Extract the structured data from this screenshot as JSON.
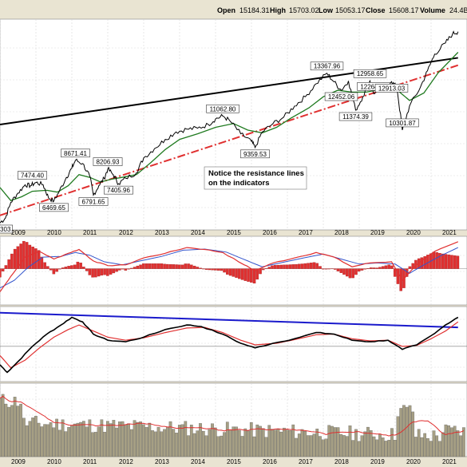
{
  "header": {
    "open_label": "Open",
    "open_value": "15184.31",
    "high_label": "High",
    "high_value": "15703.02",
    "low_label": "Low",
    "low_value": "15053.17",
    "close_label": "Close",
    "close_value": "15608.17",
    "volume_label": "Volume",
    "volume_value": "24.4B"
  },
  "note": {
    "line1": "Notice the resistance lines",
    "line2": "on the indicators"
  },
  "chart_data": {
    "type": "line",
    "x_range": [
      2009.0,
      2022.0
    ],
    "years": [
      "2009",
      "2010",
      "2011",
      "2012",
      "2013",
      "2014",
      "2015",
      "2016",
      "2017",
      "2018",
      "2019",
      "2020",
      "2021"
    ],
    "colors": {
      "price": "#000000",
      "ma": "#1f7a1f",
      "resistance": "#000000",
      "support": "#e03030",
      "macd": "#e03030",
      "macd_signal": "#3355cc",
      "hist": "#e03030",
      "osc_fast": "#000000",
      "osc_slow": "#e03030",
      "osc_trend": "#1a1acc",
      "volume": "#a69f84",
      "volume_ma": "#e03030"
    },
    "price_panel": {
      "annotations": [
        {
          "label": "7474.40",
          "x": 2009.9,
          "y": 7474.4
        },
        {
          "label": "6469.65",
          "x": 2010.5,
          "y": 6469.65
        },
        {
          "label": "8671.41",
          "x": 2011.1,
          "y": 8671.41
        },
        {
          "label": "6791.65",
          "x": 2011.6,
          "y": 6791.65
        },
        {
          "label": "8206.93",
          "x": 2012.0,
          "y": 8206.93
        },
        {
          "label": "7405.96",
          "x": 2012.3,
          "y": 7405.96
        },
        {
          "label": "11062.80",
          "x": 2015.2,
          "y": 11062.8
        },
        {
          "label": "9359.53",
          "x": 2016.1,
          "y": 9359.53
        },
        {
          "label": "13367.96",
          "x": 2018.1,
          "y": 13367.96
        },
        {
          "label": "12452.06",
          "x": 2018.5,
          "y": 12452.06
        },
        {
          "label": "12958.65",
          "x": 2019.3,
          "y": 12958.65
        },
        {
          "label": "11374.39",
          "x": 2018.9,
          "y": 11374.39
        },
        {
          "label": "12264.45",
          "x": 2019.4,
          "y": 12264.45
        },
        {
          "label": "12913.03",
          "x": 2019.9,
          "y": 12913.03
        },
        {
          "label": "10301.87",
          "x": 2020.2,
          "y": 10301.87
        },
        {
          "label": "5303",
          "x": 2009.1,
          "y": 5303
        }
      ],
      "price": [
        [
          2009.0,
          5300
        ],
        [
          2009.15,
          5550
        ],
        [
          2009.3,
          6400
        ],
        [
          2009.5,
          6900
        ],
        [
          2009.7,
          7350
        ],
        [
          2009.85,
          7300
        ],
        [
          2010.0,
          7474
        ],
        [
          2010.2,
          7350
        ],
        [
          2010.35,
          6650
        ],
        [
          2010.5,
          6470
        ],
        [
          2010.65,
          7000
        ],
        [
          2010.85,
          7750
        ],
        [
          2011.0,
          8250
        ],
        [
          2011.1,
          8671
        ],
        [
          2011.3,
          8500
        ],
        [
          2011.5,
          7800
        ],
        [
          2011.6,
          6790
        ],
        [
          2011.75,
          7300
        ],
        [
          2011.9,
          7700
        ],
        [
          2012.0,
          8207
        ],
        [
          2012.15,
          7900
        ],
        [
          2012.3,
          7406
        ],
        [
          2012.5,
          7700
        ],
        [
          2012.8,
          8000
        ],
        [
          2013.0,
          8800
        ],
        [
          2013.3,
          9300
        ],
        [
          2013.6,
          9800
        ],
        [
          2013.9,
          10200
        ],
        [
          2014.2,
          10350
        ],
        [
          2014.5,
          10400
        ],
        [
          2014.8,
          10600
        ],
        [
          2015.0,
          10900
        ],
        [
          2015.2,
          11063
        ],
        [
          2015.4,
          10800
        ],
        [
          2015.7,
          10100
        ],
        [
          2016.0,
          9700
        ],
        [
          2016.1,
          9360
        ],
        [
          2016.3,
          10200
        ],
        [
          2016.6,
          10650
        ],
        [
          2016.9,
          11000
        ],
        [
          2017.2,
          11600
        ],
        [
          2017.5,
          12100
        ],
        [
          2017.8,
          12800
        ],
        [
          2018.1,
          13368
        ],
        [
          2018.3,
          12900
        ],
        [
          2018.5,
          12452
        ],
        [
          2018.7,
          12950
        ],
        [
          2018.9,
          11374
        ],
        [
          2019.1,
          12100
        ],
        [
          2019.3,
          12959
        ],
        [
          2019.4,
          12264
        ],
        [
          2019.6,
          12700
        ],
        [
          2019.9,
          12913
        ],
        [
          2020.05,
          12600
        ],
        [
          2020.2,
          10302
        ],
        [
          2020.4,
          11600
        ],
        [
          2020.7,
          12600
        ],
        [
          2020.9,
          13500
        ],
        [
          2021.1,
          14400
        ],
        [
          2021.4,
          15000
        ],
        [
          2021.6,
          15500
        ],
        [
          2021.75,
          15608
        ]
      ],
      "moving_average": [
        [
          2009.0,
          7200
        ],
        [
          2009.3,
          6500
        ],
        [
          2009.6,
          6700
        ],
        [
          2009.9,
          7000
        ],
        [
          2010.3,
          7050
        ],
        [
          2010.6,
          6950
        ],
        [
          2010.9,
          7300
        ],
        [
          2011.2,
          7900
        ],
        [
          2011.5,
          7750
        ],
        [
          2011.8,
          7500
        ],
        [
          2012.1,
          7650
        ],
        [
          2012.4,
          7750
        ],
        [
          2012.8,
          7900
        ],
        [
          2013.2,
          8550
        ],
        [
          2013.6,
          9250
        ],
        [
          2014.0,
          9800
        ],
        [
          2014.5,
          10100
        ],
        [
          2015.0,
          10450
        ],
        [
          2015.5,
          10650
        ],
        [
          2015.9,
          10300
        ],
        [
          2016.3,
          10150
        ],
        [
          2016.7,
          10450
        ],
        [
          2017.1,
          10950
        ],
        [
          2017.6,
          11500
        ],
        [
          2018.0,
          12100
        ],
        [
          2018.4,
          12450
        ],
        [
          2018.8,
          12350
        ],
        [
          2019.2,
          12350
        ],
        [
          2019.6,
          12500
        ],
        [
          2020.0,
          12550
        ],
        [
          2020.4,
          11900
        ],
        [
          2020.8,
          12300
        ],
        [
          2021.2,
          13400
        ],
        [
          2021.75,
          14500
        ]
      ],
      "resistance_line": [
        [
          2009.0,
          10600
        ],
        [
          2021.75,
          14200
        ]
      ],
      "support_line": [
        [
          2009.0,
          5700
        ],
        [
          2021.75,
          13800
        ]
      ],
      "ylim": [
        5000,
        16200
      ]
    },
    "macd_panel": {
      "macd": [
        [
          2009.0,
          -600
        ],
        [
          2009.3,
          -200
        ],
        [
          2009.7,
          300
        ],
        [
          2010.1,
          450
        ],
        [
          2010.5,
          250
        ],
        [
          2010.9,
          400
        ],
        [
          2011.2,
          500
        ],
        [
          2011.6,
          200
        ],
        [
          2012.0,
          80
        ],
        [
          2012.5,
          100
        ],
        [
          2013.0,
          280
        ],
        [
          2013.6,
          400
        ],
        [
          2014.2,
          550
        ],
        [
          2014.7,
          500
        ],
        [
          2015.2,
          420
        ],
        [
          2015.8,
          100
        ],
        [
          2016.1,
          -50
        ],
        [
          2016.6,
          150
        ],
        [
          2017.2,
          280
        ],
        [
          2017.8,
          420
        ],
        [
          2018.3,
          300
        ],
        [
          2018.8,
          50
        ],
        [
          2019.3,
          150
        ],
        [
          2019.9,
          180
        ],
        [
          2020.2,
          -300
        ],
        [
          2020.6,
          100
        ],
        [
          2021.1,
          450
        ],
        [
          2021.75,
          700
        ]
      ],
      "signal": [
        [
          2009.0,
          -500
        ],
        [
          2009.4,
          -300
        ],
        [
          2009.8,
          50
        ],
        [
          2010.2,
          300
        ],
        [
          2010.7,
          320
        ],
        [
          2011.1,
          420
        ],
        [
          2011.5,
          350
        ],
        [
          2011.9,
          180
        ],
        [
          2012.4,
          100
        ],
        [
          2012.9,
          200
        ],
        [
          2013.5,
          320
        ],
        [
          2014.1,
          480
        ],
        [
          2014.7,
          510
        ],
        [
          2015.3,
          430
        ],
        [
          2015.9,
          200
        ],
        [
          2016.3,
          50
        ],
        [
          2016.8,
          150
        ],
        [
          2017.4,
          270
        ],
        [
          2018.0,
          380
        ],
        [
          2018.5,
          250
        ],
        [
          2019.0,
          120
        ],
        [
          2019.5,
          150
        ],
        [
          2020.0,
          120
        ],
        [
          2020.4,
          -120
        ],
        [
          2020.8,
          100
        ],
        [
          2021.3,
          350
        ],
        [
          2021.75,
          550
        ]
      ],
      "ylim": [
        -900,
        800
      ]
    },
    "oscillator_panel": {
      "fast": [
        [
          2009.0,
          -60
        ],
        [
          2009.2,
          -85
        ],
        [
          2009.5,
          -50
        ],
        [
          2009.9,
          0
        ],
        [
          2010.3,
          40
        ],
        [
          2010.7,
          70
        ],
        [
          2011.0,
          95
        ],
        [
          2011.3,
          80
        ],
        [
          2011.6,
          40
        ],
        [
          2012.0,
          20
        ],
        [
          2012.5,
          15
        ],
        [
          2013.0,
          30
        ],
        [
          2013.6,
          55
        ],
        [
          2014.2,
          70
        ],
        [
          2014.6,
          65
        ],
        [
          2015.2,
          40
        ],
        [
          2015.7,
          10
        ],
        [
          2016.1,
          -5
        ],
        [
          2016.6,
          10
        ],
        [
          2017.2,
          25
        ],
        [
          2017.8,
          45
        ],
        [
          2018.3,
          40
        ],
        [
          2018.8,
          20
        ],
        [
          2019.3,
          15
        ],
        [
          2019.8,
          20
        ],
        [
          2020.2,
          -10
        ],
        [
          2020.6,
          5
        ],
        [
          2021.0,
          35
        ],
        [
          2021.4,
          70
        ],
        [
          2021.75,
          95
        ]
      ],
      "slow": [
        [
          2009.0,
          -30
        ],
        [
          2009.3,
          -70
        ],
        [
          2009.7,
          -45
        ],
        [
          2010.1,
          -5
        ],
        [
          2010.5,
          30
        ],
        [
          2010.9,
          55
        ],
        [
          2011.2,
          70
        ],
        [
          2011.6,
          50
        ],
        [
          2012.0,
          30
        ],
        [
          2012.5,
          20
        ],
        [
          2013.0,
          28
        ],
        [
          2013.6,
          45
        ],
        [
          2014.2,
          60
        ],
        [
          2014.7,
          62
        ],
        [
          2015.2,
          45
        ],
        [
          2015.7,
          20
        ],
        [
          2016.1,
          5
        ],
        [
          2016.7,
          10
        ],
        [
          2017.2,
          22
        ],
        [
          2017.8,
          38
        ],
        [
          2018.3,
          40
        ],
        [
          2018.8,
          25
        ],
        [
          2019.3,
          18
        ],
        [
          2019.8,
          20
        ],
        [
          2020.2,
          0
        ],
        [
          2020.6,
          3
        ],
        [
          2021.0,
          25
        ],
        [
          2021.4,
          50
        ],
        [
          2021.75,
          80
        ]
      ],
      "trend_line": [
        [
          2009.0,
          110
        ],
        [
          2021.75,
          62
        ]
      ],
      "ylim": [
        -110,
        125
      ]
    },
    "volume_panel": {
      "ylim": [
        0,
        100
      ]
    }
  }
}
